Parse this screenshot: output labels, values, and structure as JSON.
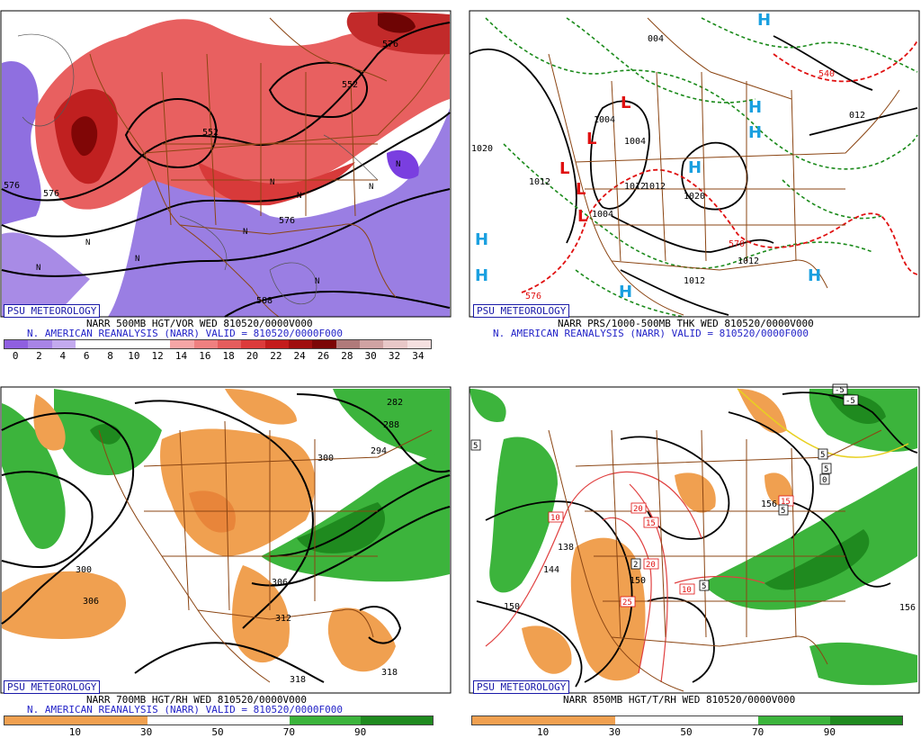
{
  "logo": "PSU METEOROLOGY",
  "panels": {
    "tl": {
      "line1": "NARR 500MB HGT/VOR WED 810520/0000V000",
      "line2": "N. AMERICAN REANALYSIS (NARR) VALID = 810520/0000F000",
      "legend_labels": [
        "0",
        "2",
        "4",
        "6",
        "8",
        "10",
        "12",
        "14",
        "16",
        "18",
        "20",
        "22",
        "24",
        "26",
        "28",
        "30",
        "32",
        "34"
      ],
      "legend_colors": [
        "#8f5fe0",
        "#a884e6",
        "#c3aaee",
        "#ffffff",
        "#ffffff",
        "#ffffff",
        "#ffffff",
        "#f6a6a6",
        "#ef8080",
        "#e55d5d",
        "#dc3b3b",
        "#c41c1c",
        "#a00e0e",
        "#7c0606",
        "#b07a7a",
        "#d0a3a3",
        "#e8c8c8",
        "#f5e0e0"
      ],
      "contour_labels": [
        "552",
        "576",
        "576",
        "588",
        "576",
        "552",
        "576"
      ]
    },
    "tr": {
      "line1": "NARR PRS/1000-500MB THK WED 810520/0000V000",
      "line2": "N. AMERICAN REANALYSIS (NARR) VALID = 810520/0000F000",
      "pressure_labels": [
        "004",
        "1004",
        "1012",
        "1004",
        "1020",
        "1020",
        "1012",
        "1012",
        "1012",
        "1012",
        "1004",
        "012"
      ],
      "thickness_labels": [
        "576",
        "570",
        "540"
      ],
      "highs": [
        "H",
        "H",
        "H",
        "H",
        "H",
        "H",
        "H"
      ],
      "lows": [
        "L",
        "L",
        "L",
        "L",
        "L"
      ]
    },
    "bl": {
      "line1": "NARR 700MB HGT/RH WED 810520/0000V000",
      "line2": "N. AMERICAN REANALYSIS (NARR) VALID = 810520/0000F000",
      "legend_labels": [
        "10",
        "30",
        "50",
        "70",
        "90"
      ],
      "contour_labels": [
        "282",
        "288",
        "294",
        "300",
        "300",
        "306",
        "306",
        "312",
        "318",
        "318"
      ]
    },
    "br": {
      "line1": "NARR 850MB HGT/T/RH WED 810520/0000V000",
      "legend_labels": [
        "10",
        "30",
        "50",
        "70",
        "90"
      ],
      "contour_labels": [
        "138",
        "150",
        "156",
        "144",
        "150",
        "156"
      ],
      "temp_labels": [
        "5",
        "10",
        "20",
        "15",
        "2",
        "20",
        "25",
        "10",
        "5",
        "15",
        "5",
        "-5",
        "-5",
        "5",
        "5",
        "0"
      ]
    }
  },
  "colors": {
    "map_outline": "#8b4513",
    "caption_blue": "#2424c8",
    "rh_green": "#3cb43c",
    "rh_orange": "#f0a050"
  }
}
